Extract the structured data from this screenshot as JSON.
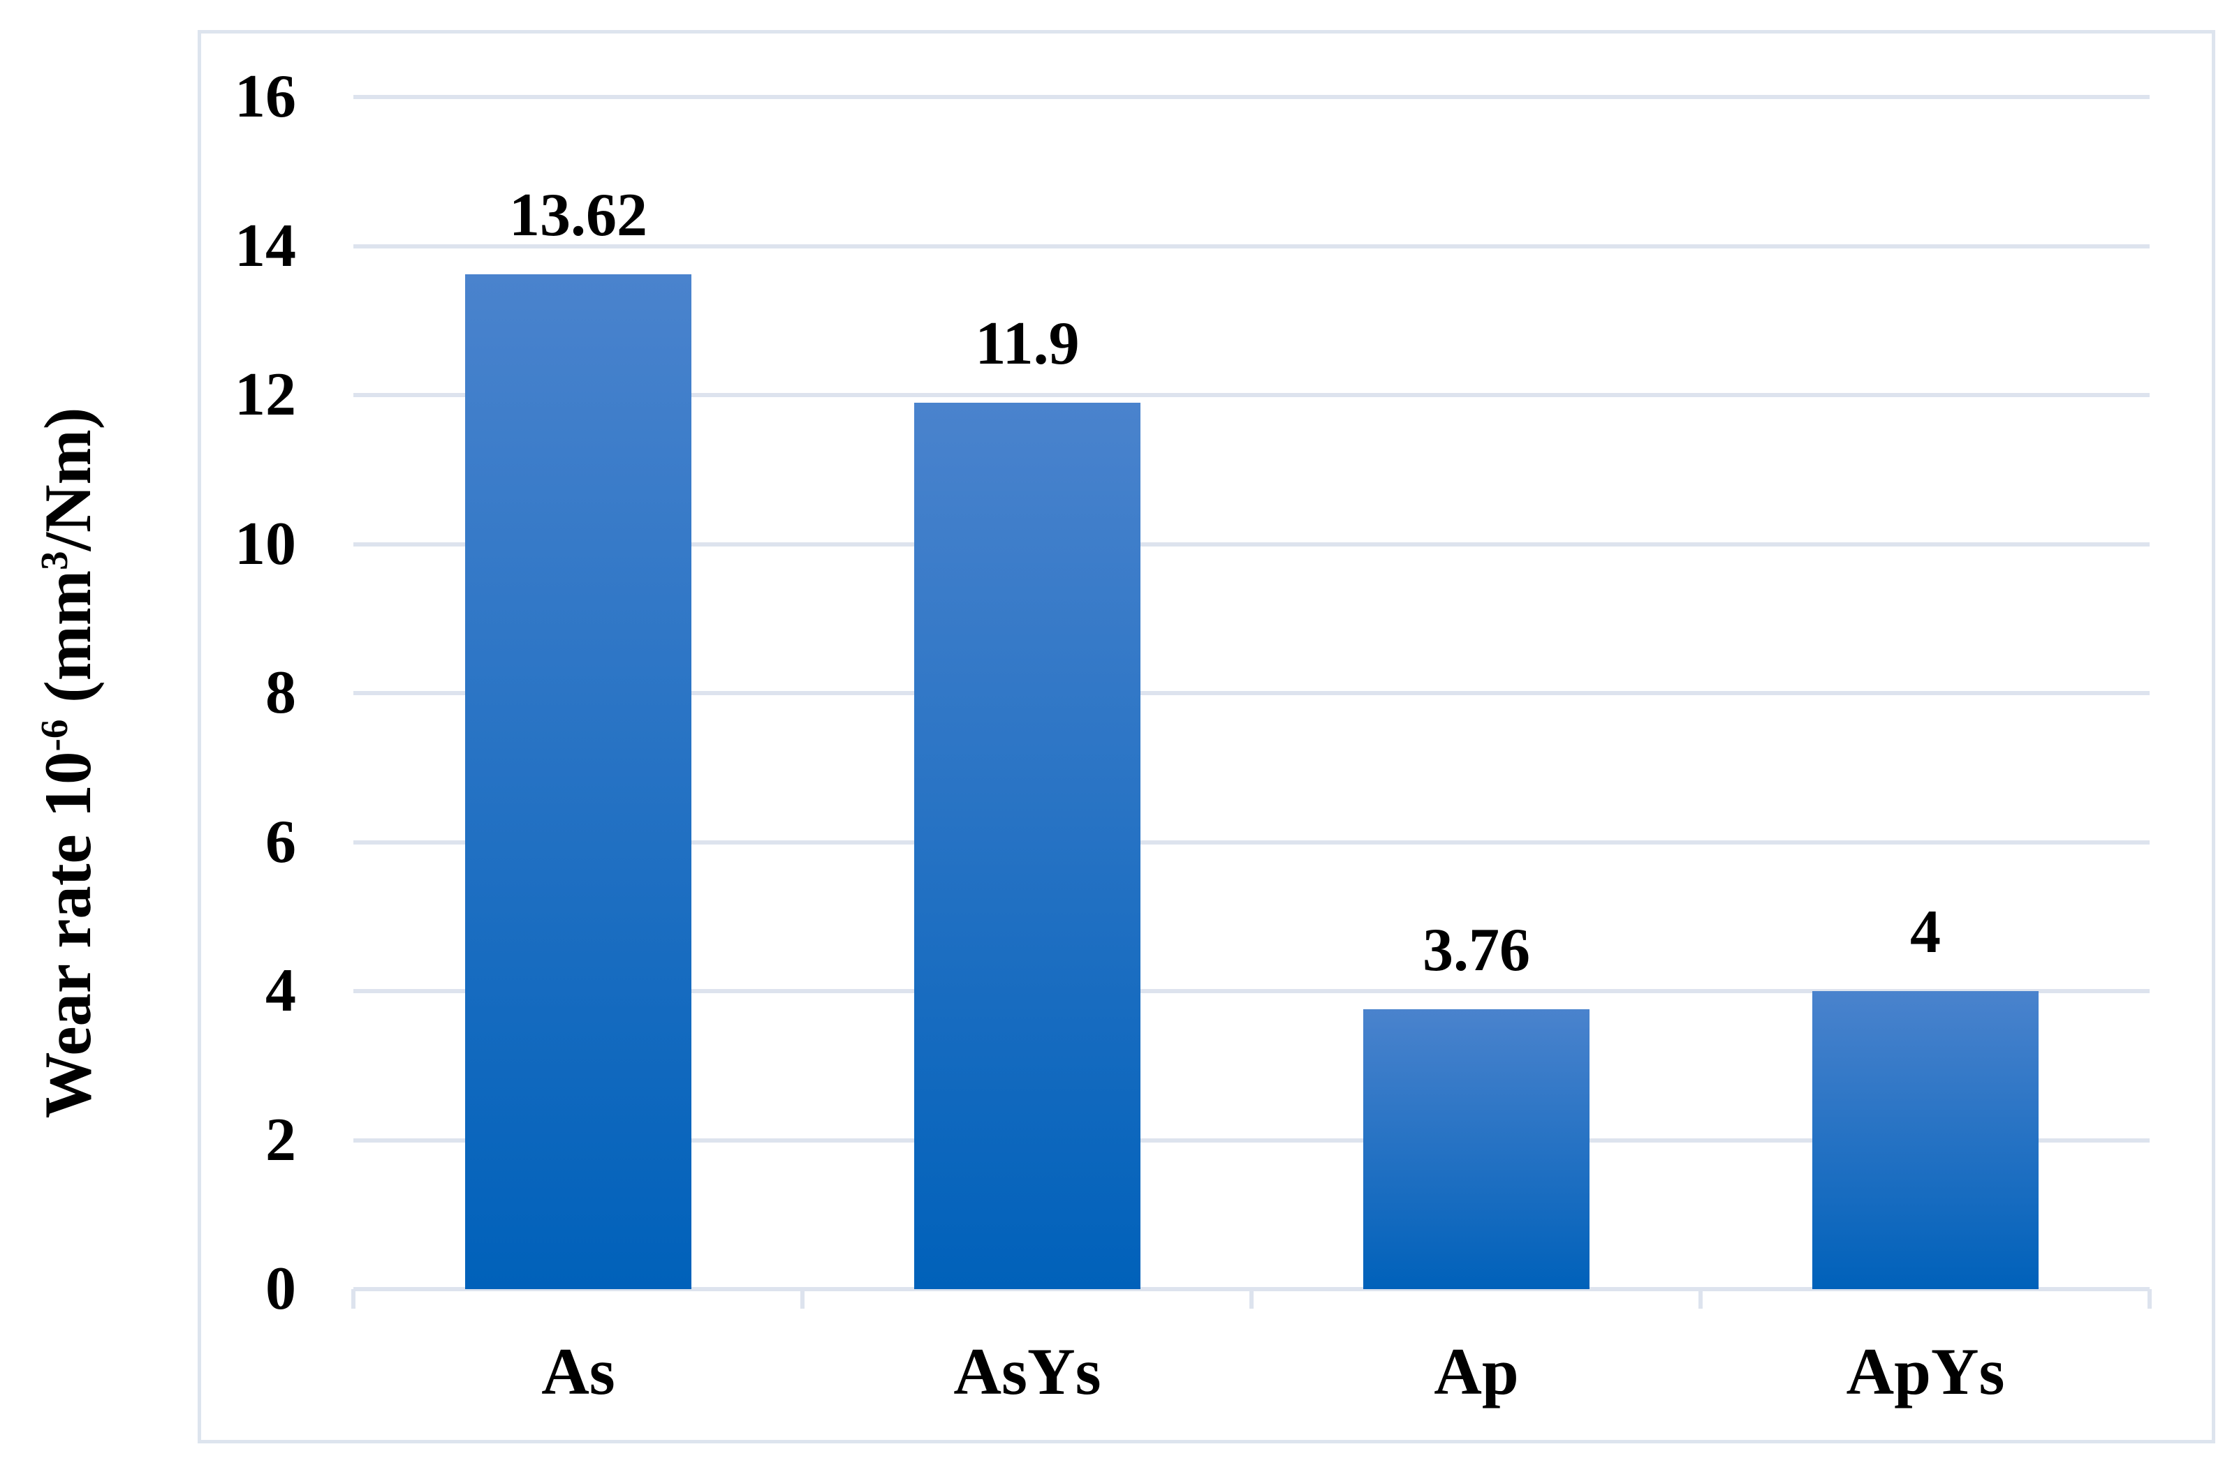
{
  "figure": {
    "background_color": "#ffffff",
    "frame_color": "#dde4ee",
    "text_color": "#000000"
  },
  "y_axis": {
    "title_prefix": "Wear rate 10",
    "title_sup1": "-6",
    "title_mid": " (mm",
    "title_sup2": "3",
    "title_suffix": "/Nm)",
    "tick_labels": [
      "0",
      "2",
      "4",
      "6",
      "8",
      "10",
      "12",
      "14",
      "16"
    ]
  },
  "chart_data": {
    "type": "bar",
    "categories": [
      "As",
      "AsYs",
      "Ap",
      "ApYs"
    ],
    "values": [
      13.62,
      11.9,
      3.76,
      4
    ],
    "data_labels": [
      "13.62",
      "11.9",
      "3.76",
      "4"
    ],
    "title": "",
    "xlabel": "",
    "ylabel": "Wear rate 10^-6 (mm^3/Nm)",
    "ylim": [
      0,
      16
    ],
    "ytick_step": 2,
    "grid": true,
    "legend_position": "none",
    "gridline_color": "#dde3ee",
    "axis_line_color": "#dde3ee",
    "bar_color_top": "#4a83cd",
    "bar_color_bottom": "#0061ba",
    "bar_width_fraction": 0.504
  }
}
